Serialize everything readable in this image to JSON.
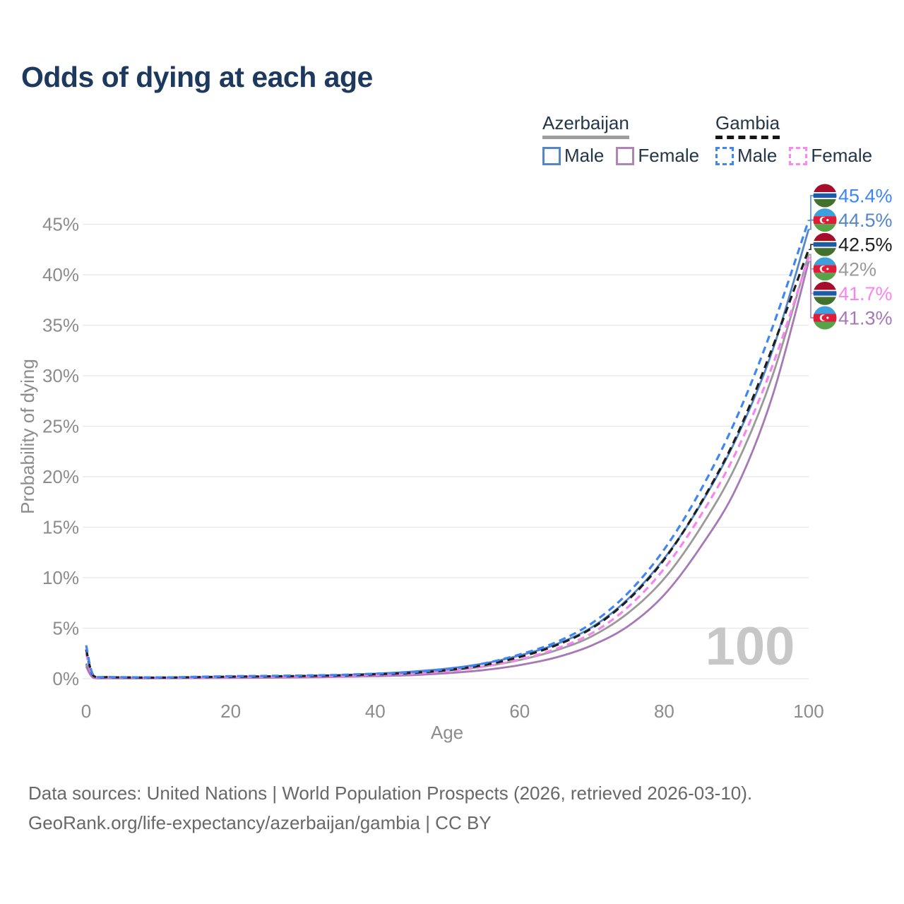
{
  "title": "Odds of dying at each age",
  "legend": {
    "groups": [
      {
        "country": "Azerbaijan",
        "line_style": "solid",
        "underline_color": "#9e9e9e",
        "items": [
          {
            "label": "Male",
            "color": "#5586c8",
            "dashed": false
          },
          {
            "label": "Female",
            "color": "#b184b6",
            "dashed": false
          }
        ]
      },
      {
        "country": "Gambia",
        "line_style": "dashed",
        "underline_color": "#161616",
        "items": [
          {
            "label": "Male",
            "color": "#3f86f2",
            "dashed": true
          },
          {
            "label": "Female",
            "color": "#fb87f3",
            "dashed": true
          }
        ]
      }
    ]
  },
  "chart_data": {
    "type": "line",
    "title": "Odds of dying at each age",
    "xlabel": "Age",
    "ylabel": "Probability of dying",
    "xlim": [
      0,
      100
    ],
    "ylim": [
      0,
      47
    ],
    "grid": "horizontal",
    "legend_position": "top-right",
    "watermark": "100",
    "x_ticks": [
      {
        "value": 0,
        "label": "0"
      },
      {
        "value": 20,
        "label": "20"
      },
      {
        "value": 40,
        "label": "40"
      },
      {
        "value": 60,
        "label": "60"
      },
      {
        "value": 80,
        "label": "80"
      },
      {
        "value": 100,
        "label": "100"
      }
    ],
    "y_ticks": [
      {
        "value": 0,
        "label": "0%"
      },
      {
        "value": 5,
        "label": "5%"
      },
      {
        "value": 10,
        "label": "10%"
      },
      {
        "value": 15,
        "label": "15%"
      },
      {
        "value": 20,
        "label": "20%"
      },
      {
        "value": 25,
        "label": "25%"
      },
      {
        "value": 30,
        "label": "30%"
      },
      {
        "value": 35,
        "label": "35%"
      },
      {
        "value": 40,
        "label": "40%"
      },
      {
        "value": 45,
        "label": "45%"
      }
    ],
    "ages": [
      0,
      1,
      3,
      5,
      10,
      15,
      20,
      25,
      30,
      35,
      40,
      45,
      50,
      55,
      60,
      65,
      70,
      75,
      80,
      85,
      90,
      95,
      100
    ],
    "series": [
      {
        "name": "Gambia — Male",
        "country": "Gambia",
        "sex": "Male",
        "color": "#3f86f2",
        "line_style": "dashed",
        "end_label": "45.4%",
        "flag": "gambia-flag-icon",
        "values": [
          3.3,
          0.35,
          0.18,
          0.15,
          0.13,
          0.18,
          0.25,
          0.28,
          0.32,
          0.38,
          0.5,
          0.65,
          0.95,
          1.5,
          2.4,
          3.6,
          5.5,
          8.5,
          12.8,
          18.6,
          25.8,
          34.8,
          45.4
        ]
      },
      {
        "name": "Azerbaijan — Male",
        "country": "Azerbaijan",
        "sex": "Male",
        "color": "#5586c8",
        "line_style": "solid",
        "end_label": "44.5%",
        "flag": "azerbaijan-flag-icon",
        "values": [
          1.5,
          0.12,
          0.07,
          0.06,
          0.06,
          0.1,
          0.16,
          0.2,
          0.26,
          0.35,
          0.5,
          0.7,
          1.0,
          1.5,
          2.3,
          3.4,
          5.1,
          7.9,
          11.9,
          17.2,
          23.8,
          32.5,
          44.5
        ]
      },
      {
        "name": "Gambia — Both sexes",
        "country": "Gambia",
        "sex": "Combined",
        "color": "#1e1e1e",
        "line_style": "dashed",
        "end_label": "42.5%",
        "flag": "gambia-flag-icon",
        "values": [
          2.9,
          0.3,
          0.16,
          0.13,
          0.11,
          0.15,
          0.2,
          0.23,
          0.27,
          0.33,
          0.44,
          0.58,
          0.85,
          1.35,
          2.15,
          3.3,
          5.0,
          7.8,
          11.8,
          17.3,
          24.0,
          32.8,
          42.5
        ]
      },
      {
        "name": "Azerbaijan — Both sexes",
        "country": "Azerbaijan",
        "sex": "Combined",
        "color": "#9a9a9a",
        "line_style": "solid",
        "end_label": "42%",
        "flag": "azerbaijan-flag-icon",
        "values": [
          1.35,
          0.1,
          0.06,
          0.05,
          0.05,
          0.08,
          0.12,
          0.15,
          0.2,
          0.27,
          0.38,
          0.52,
          0.78,
          1.2,
          1.85,
          2.8,
          4.2,
          6.5,
          9.9,
          14.9,
          21.2,
          30.0,
          42.0
        ]
      },
      {
        "name": "Gambia — Female",
        "country": "Gambia",
        "sex": "Female",
        "color": "#f784ef",
        "line_style": "dashed",
        "end_label": "41.7%",
        "flag": "gambia-flag-icon",
        "values": [
          2.5,
          0.27,
          0.14,
          0.12,
          0.1,
          0.12,
          0.16,
          0.19,
          0.23,
          0.28,
          0.38,
          0.5,
          0.75,
          1.2,
          1.9,
          2.95,
          4.5,
          7.1,
          10.9,
          16.1,
          22.5,
          31.0,
          41.7
        ]
      },
      {
        "name": "Azerbaijan — Female",
        "country": "Azerbaijan",
        "sex": "Female",
        "color": "#a678b5",
        "line_style": "solid",
        "end_label": "41.3%",
        "flag": "azerbaijan-flag-icon",
        "values": [
          1.2,
          0.09,
          0.05,
          0.04,
          0.04,
          0.06,
          0.08,
          0.1,
          0.13,
          0.18,
          0.25,
          0.35,
          0.55,
          0.85,
          1.35,
          2.1,
          3.3,
          5.2,
          8.3,
          13.0,
          18.9,
          28.0,
          41.3
        ]
      }
    ],
    "flag_colors": {
      "gambia": {
        "red": "#a60f2c",
        "white": "#ffffff",
        "blue": "#1e5ba6",
        "green": "#43702d"
      },
      "azerbaijan": {
        "blue": "#3da0dd",
        "red": "#e01c38",
        "green": "#57a34a",
        "white": "#ffffff"
      }
    }
  },
  "footer": {
    "line1": "Data sources: United Nations | World Population Prospects (2026, retrieved 2026-03-10).",
    "line2": "GeoRank.org/life-expectancy/azerbaijan/gambia | CC BY"
  }
}
